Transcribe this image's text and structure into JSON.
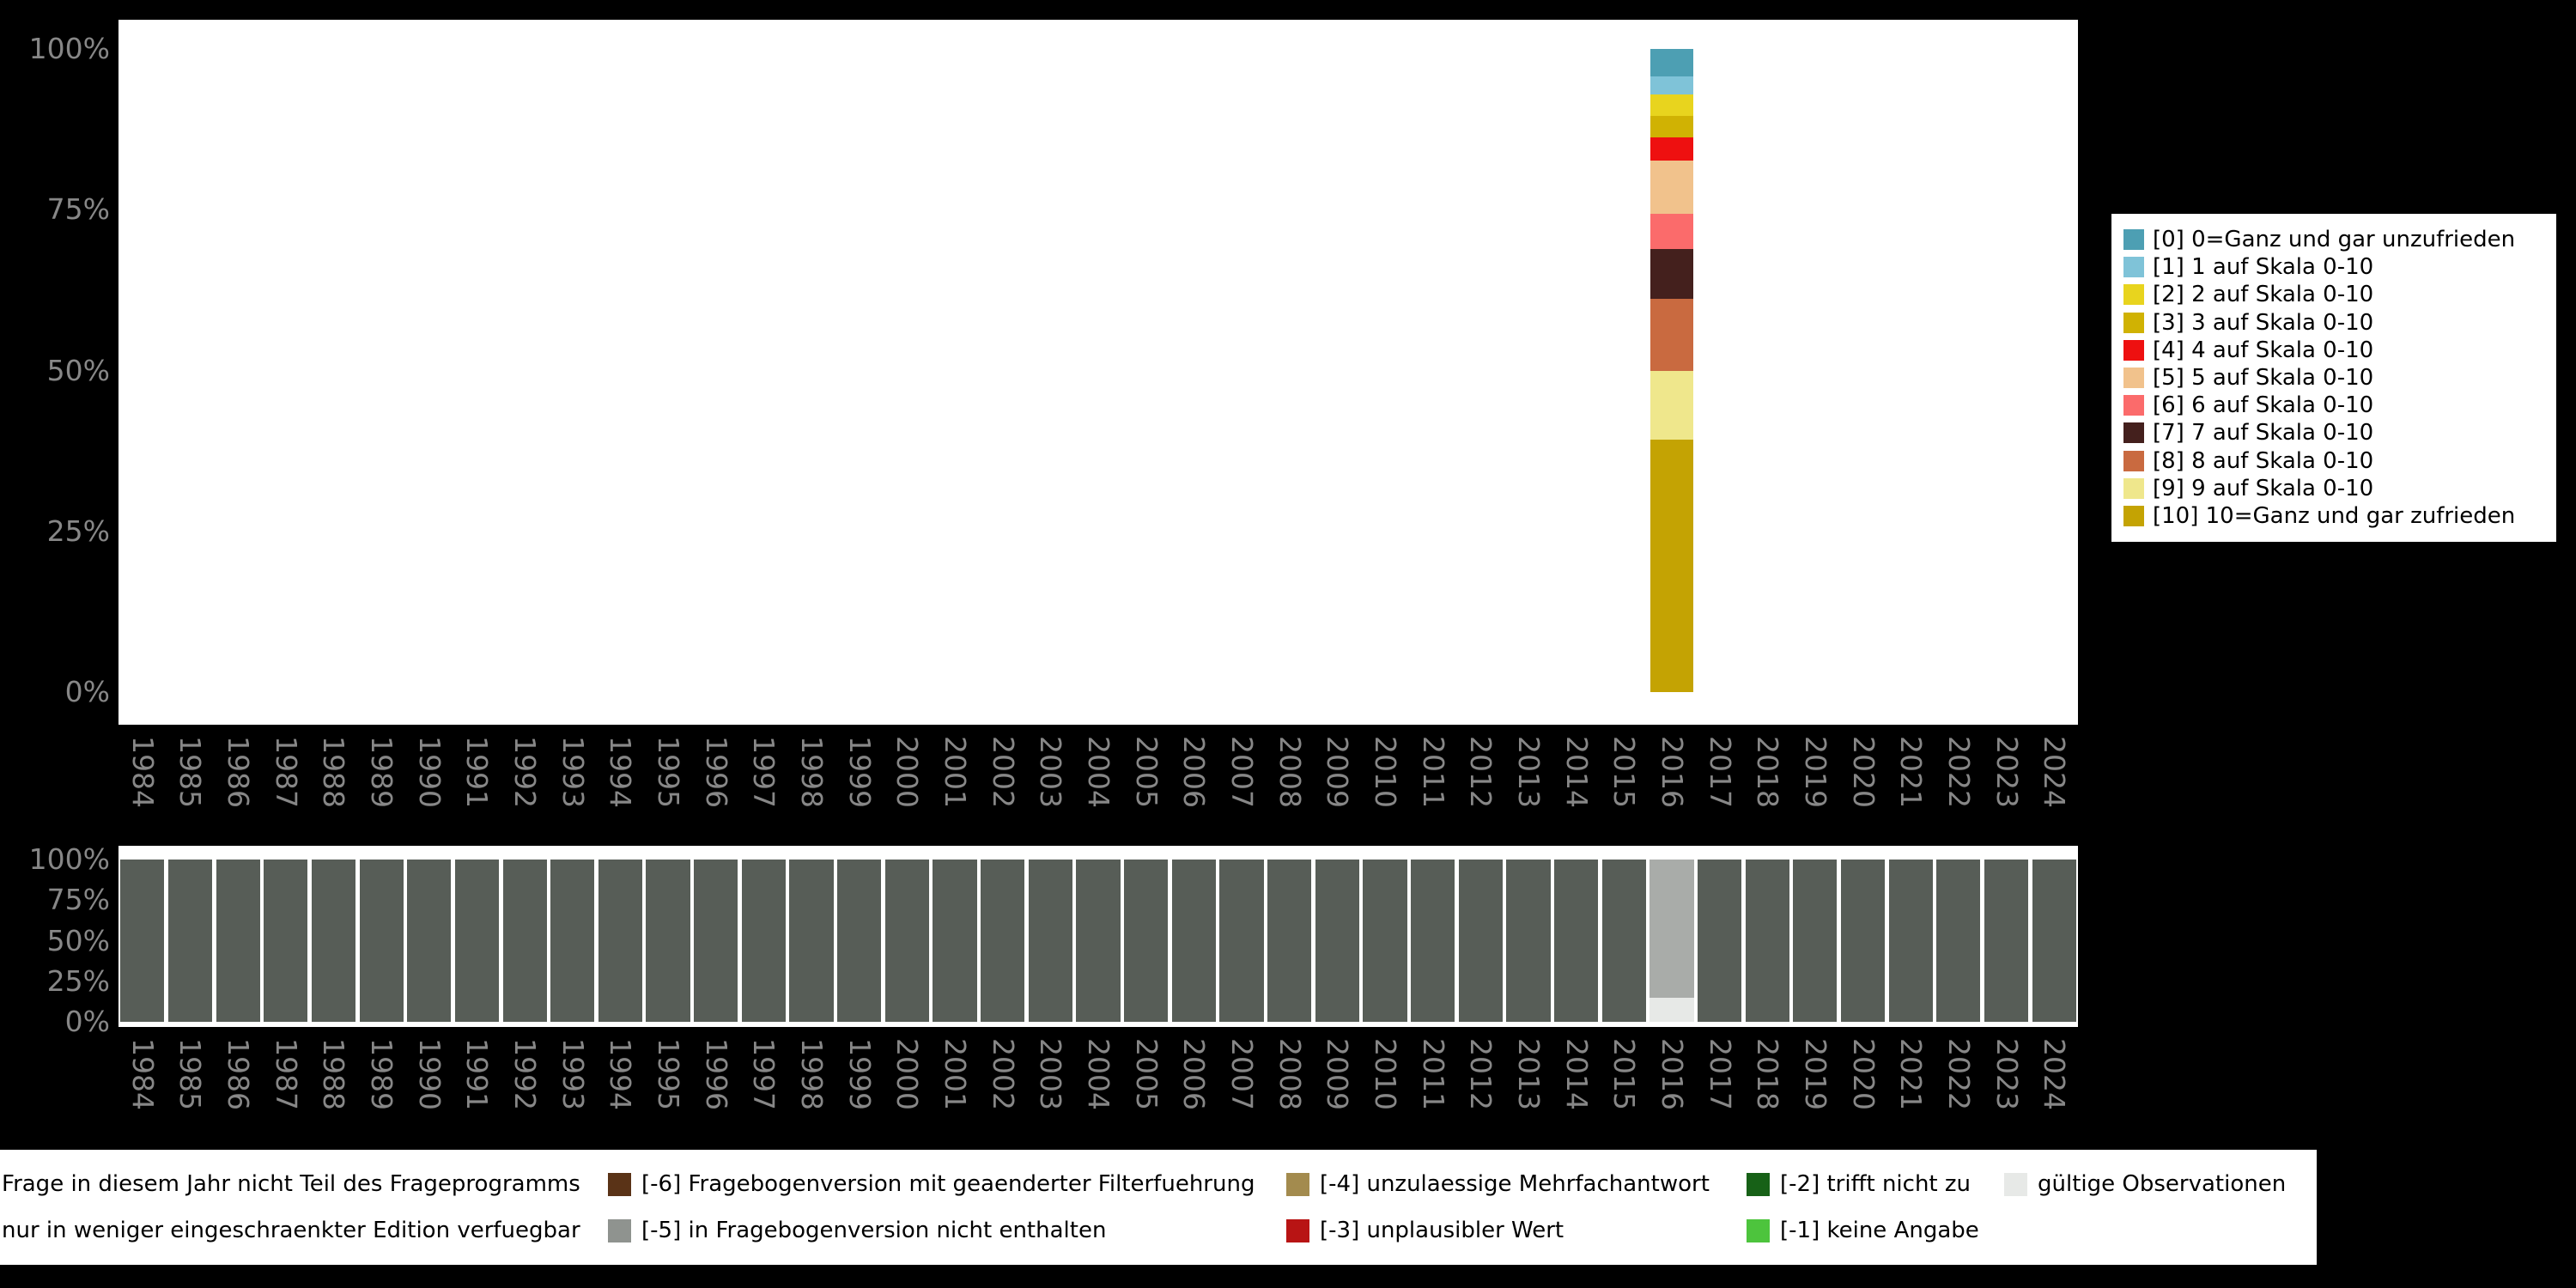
{
  "colors": {
    "background": "#000000",
    "panel_background": "#ffffff",
    "axis_text": "#878787",
    "not_in_program_gray": "#575d57",
    "restricted_edition_gray": "#a9aca9",
    "valid_observations_gray": "#e7e9e7"
  },
  "y_ticks": [
    "100%",
    "75%",
    "50%",
    "25%",
    "0%"
  ],
  "years": [
    "1984",
    "1985",
    "1986",
    "1987",
    "1988",
    "1989",
    "1990",
    "1991",
    "1992",
    "1993",
    "1994",
    "1995",
    "1996",
    "1997",
    "1998",
    "1999",
    "2000",
    "2001",
    "2002",
    "2003",
    "2004",
    "2005",
    "2006",
    "2007",
    "2008",
    "2009",
    "2010",
    "2011",
    "2012",
    "2013",
    "2014",
    "2015",
    "2016",
    "2017",
    "2018",
    "2019",
    "2020",
    "2021",
    "2022",
    "2023",
    "2024"
  ],
  "chart_data": [
    {
      "type": "bar",
      "stacked": true,
      "title": "",
      "xlabel": "",
      "ylabel": "",
      "ylim": [
        0,
        100
      ],
      "y_tick_labels": [
        "0%",
        "25%",
        "50%",
        "75%",
        "100%"
      ],
      "legend_position": "right",
      "grid": false,
      "note": "Percent distribution of answer scale; only year 2016 has data, all other years empty",
      "categories": [
        "1984",
        "1985",
        "1986",
        "1987",
        "1988",
        "1989",
        "1990",
        "1991",
        "1992",
        "1993",
        "1994",
        "1995",
        "1996",
        "1997",
        "1998",
        "1999",
        "2000",
        "2001",
        "2002",
        "2003",
        "2004",
        "2005",
        "2006",
        "2007",
        "2008",
        "2009",
        "2010",
        "2011",
        "2012",
        "2013",
        "2014",
        "2015",
        "2016",
        "2017",
        "2018",
        "2019",
        "2020",
        "2021",
        "2022",
        "2023",
        "2024"
      ],
      "series": [
        {
          "name": "[0] 0=Ganz und gar unzufrieden",
          "color": "#4d9fb3",
          "values": {
            "default": 0,
            "2016": 4.3
          }
        },
        {
          "name": "[1] 1 auf Skala 0-10",
          "color": "#7fc3d8",
          "values": {
            "default": 0,
            "2016": 2.8
          }
        },
        {
          "name": "[2] 2 auf Skala 0-10",
          "color": "#e8d41e",
          "values": {
            "default": 0,
            "2016": 3.3
          }
        },
        {
          "name": "[3] 3 auf Skala 0-10",
          "color": "#d0b203",
          "values": {
            "default": 0,
            "2016": 3.3
          }
        },
        {
          "name": "[4] 4 auf Skala 0-10",
          "color": "#ee1010",
          "values": {
            "default": 0,
            "2016": 3.6
          }
        },
        {
          "name": "[5] 5 auf Skala 0-10",
          "color": "#f1c28c",
          "values": {
            "default": 0,
            "2016": 8.4
          }
        },
        {
          "name": "[6] 6 auf Skala 0-10",
          "color": "#fb6b6b",
          "values": {
            "default": 0,
            "2016": 5.4
          }
        },
        {
          "name": "[7] 7 auf Skala 0-10",
          "color": "#44201d",
          "values": {
            "default": 0,
            "2016": 7.7
          }
        },
        {
          "name": "[8] 8 auf Skala 0-10",
          "color": "#c96a40",
          "values": {
            "default": 0,
            "2016": 11.3
          }
        },
        {
          "name": "[9] 9 auf Skala 0-10",
          "color": "#efe78c",
          "values": {
            "default": 0,
            "2016": 10.7
          }
        },
        {
          "name": "[10] 10=Ganz und gar zufrieden",
          "color": "#c4a303",
          "values": {
            "default": 0,
            "2016": 39.2
          }
        }
      ]
    },
    {
      "type": "bar",
      "stacked": true,
      "title": "",
      "xlabel": "",
      "ylabel": "",
      "ylim": [
        0,
        100
      ],
      "y_tick_labels": [
        "0%",
        "25%",
        "50%",
        "75%",
        "100%"
      ],
      "legend_position": "bottom",
      "grid": false,
      "note": "Missing / availability codes per year; series listed top-to-bottom in stack order",
      "categories": [
        "1984",
        "1985",
        "1986",
        "1987",
        "1988",
        "1989",
        "1990",
        "1991",
        "1992",
        "1993",
        "1994",
        "1995",
        "1996",
        "1997",
        "1998",
        "1999",
        "2000",
        "2001",
        "2002",
        "2003",
        "2004",
        "2005",
        "2006",
        "2007",
        "2008",
        "2009",
        "2010",
        "2011",
        "2012",
        "2013",
        "2014",
        "2015",
        "2016",
        "2017",
        "2018",
        "2019",
        "2020",
        "2021",
        "2022",
        "2023",
        "2024"
      ],
      "series": [
        {
          "name": "Frage in diesem Jahr nicht Teil des Frageprogramms",
          "color": "#575d57",
          "values": {
            "default": 100,
            "2016": 0
          }
        },
        {
          "name": "nur in weniger eingeschraenkter Edition verfuegbar",
          "color": "#a9aca9",
          "values": {
            "default": 0,
            "2016": 85
          }
        },
        {
          "name": "gültige Observationen",
          "color": "#e7e9e7",
          "values": {
            "default": 0,
            "2016": 15
          }
        }
      ]
    }
  ],
  "missing_legend": {
    "rows": [
      [
        {
          "label": "Frage in diesem Jahr nicht Teil des Frageprogramms",
          "color": "#575d57",
          "key_clipped": true
        },
        {
          "label": "[-6] Fragebogenversion mit geaenderter Filterfuehrung",
          "color": "#5a3317"
        },
        {
          "label": "[-4] unzulaessige Mehrfachantwort",
          "color": "#a38b4e"
        },
        {
          "label": "[-2] trifft nicht zu",
          "color": "#176117"
        },
        {
          "label": "gültige Observationen",
          "color": "#e7e9e7"
        }
      ],
      [
        {
          "label": "nur in weniger eingeschraenkter Edition verfuegbar",
          "color": "#a9aca9",
          "key_clipped": true
        },
        {
          "label": "[-5] in Fragebogenversion nicht enthalten",
          "color": "#8f938f"
        },
        {
          "label": "[-3] unplausibler Wert",
          "color": "#b81414"
        },
        {
          "label": "[-1] keine Angabe",
          "color": "#4dc43d"
        },
        {
          "label": "",
          "empty": true
        }
      ]
    ]
  }
}
